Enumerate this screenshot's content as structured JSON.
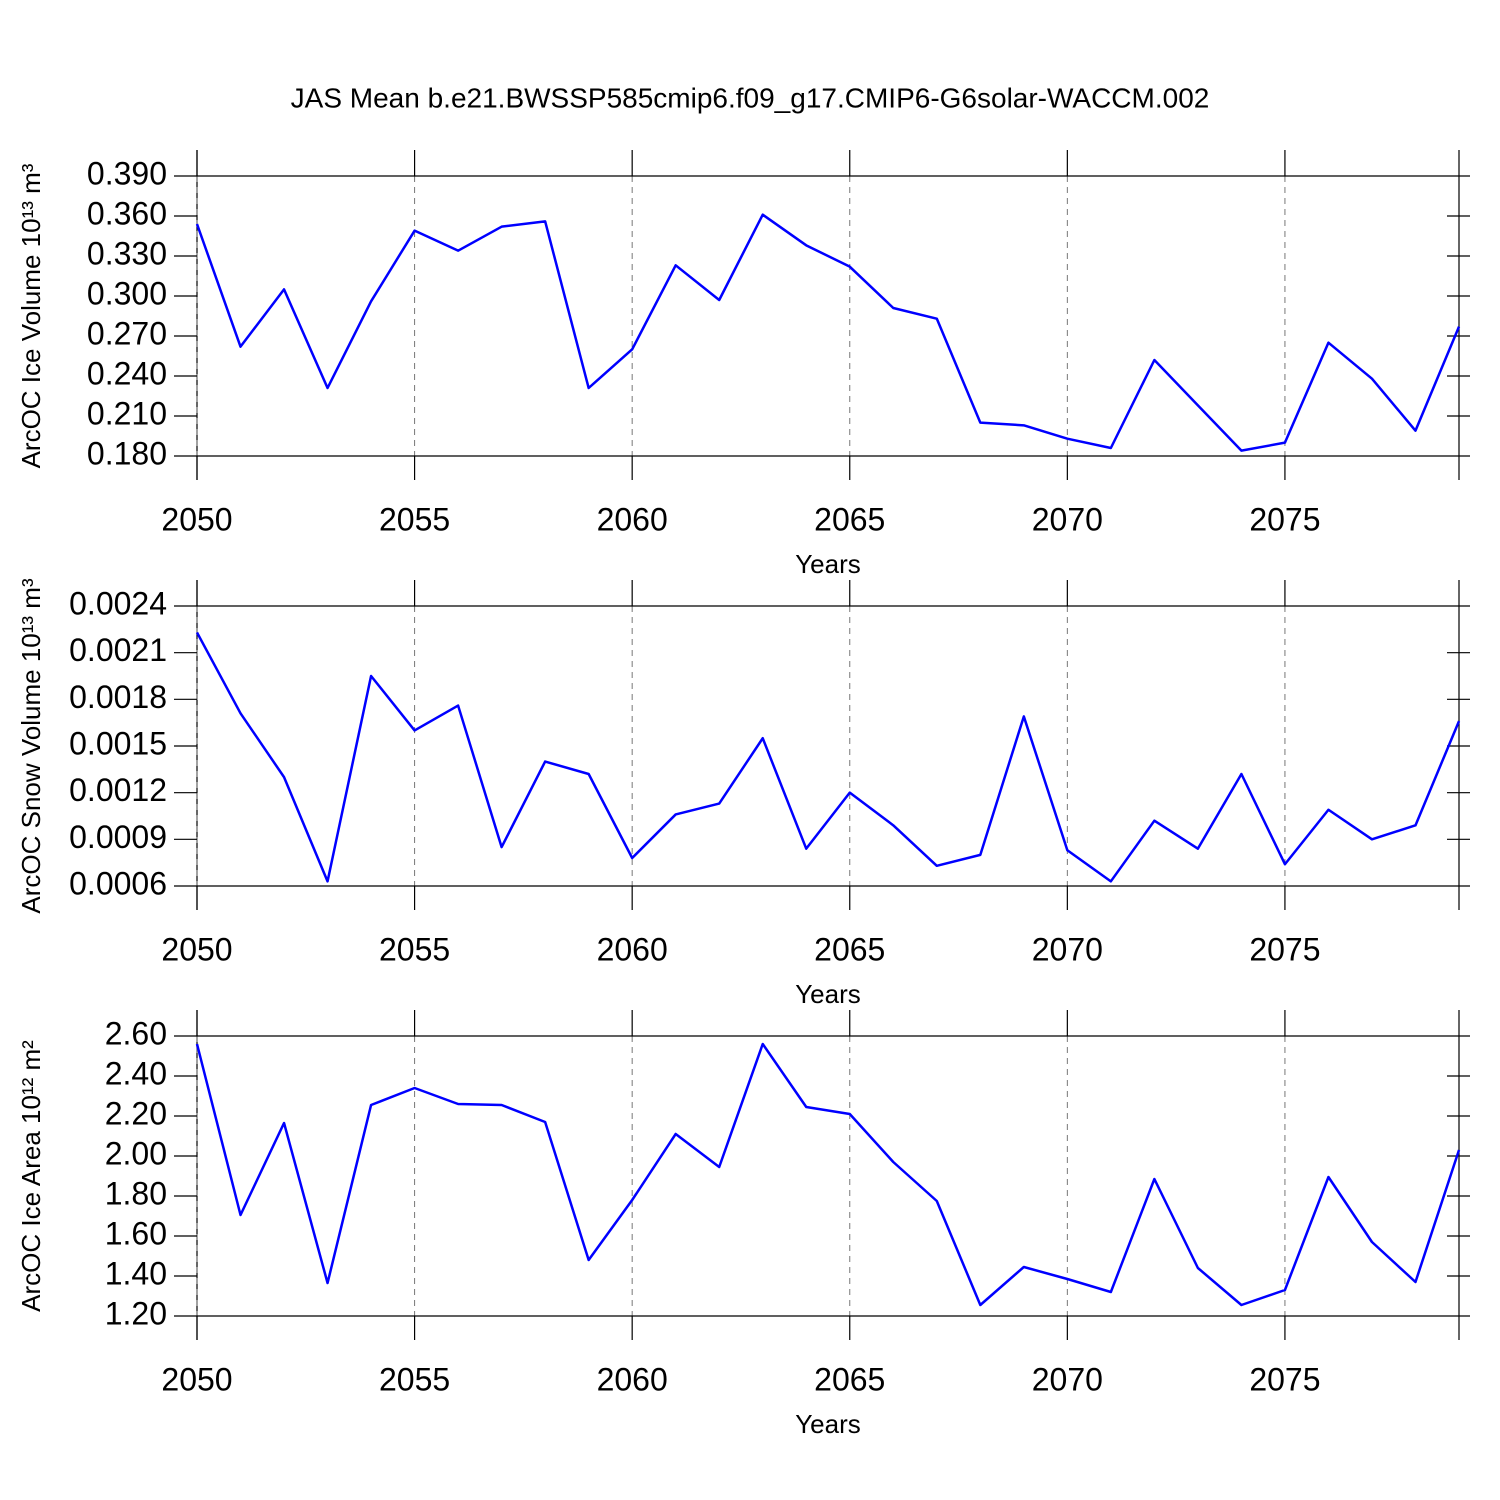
{
  "chart_data": [
    {
      "type": "line",
      "title": "JAS Mean b.e21.BWSSP585cmip6.f09_g17.CMIP6-G6solar-WACCM.002",
      "x_label": "Years",
      "y_label": "ArcOC Ice Volume 10¹³ m³",
      "grid": "x",
      "x": [
        2050,
        2051,
        2052,
        2053,
        2054,
        2055,
        2056,
        2057,
        2058,
        2059,
        2060,
        2061,
        2062,
        2063,
        2064,
        2065,
        2066,
        2067,
        2068,
        2069,
        2070,
        2071,
        2072,
        2073,
        2074,
        2075,
        2076,
        2077,
        2078,
        2079
      ],
      "series": [
        {
          "color": "#0000ff",
          "values": [
            0.354,
            0.262,
            0.305,
            0.231,
            0.296,
            0.349,
            0.334,
            0.352,
            0.356,
            0.231,
            0.26,
            0.323,
            0.297,
            0.361,
            0.338,
            0.322,
            0.291,
            0.283,
            0.205,
            0.203,
            0.193,
            0.186,
            0.252,
            0.218,
            0.184,
            0.19,
            0.265,
            0.238,
            0.199,
            0.277
          ]
        }
      ],
      "xlim": [
        2050,
        2079
      ],
      "xticks": [
        2050,
        2055,
        2060,
        2065,
        2070,
        2075
      ],
      "ylim": [
        0.18,
        0.39
      ],
      "yticks": [
        {
          "value": 0.18,
          "label": "0.180"
        },
        {
          "value": 0.21,
          "label": "0.210"
        },
        {
          "value": 0.24,
          "label": "0.240"
        },
        {
          "value": 0.27,
          "label": "0.270"
        },
        {
          "value": 0.3,
          "label": "0.300"
        },
        {
          "value": 0.33,
          "label": "0.330"
        },
        {
          "value": 0.36,
          "label": "0.360"
        },
        {
          "value": 0.39,
          "label": "0.390"
        }
      ]
    },
    {
      "type": "line",
      "x_label": "Years",
      "y_label": "ArcOC Snow Volume 10¹³ m³",
      "grid": "x",
      "x": [
        2050,
        2051,
        2052,
        2053,
        2054,
        2055,
        2056,
        2057,
        2058,
        2059,
        2060,
        2061,
        2062,
        2063,
        2064,
        2065,
        2066,
        2067,
        2068,
        2069,
        2070,
        2071,
        2072,
        2073,
        2074,
        2075,
        2076,
        2077,
        2078,
        2079
      ],
      "series": [
        {
          "color": "#0000ff",
          "values": [
            0.00223,
            0.00171,
            0.0013,
            0.00063,
            0.00195,
            0.0016,
            0.00176,
            0.00085,
            0.0014,
            0.00132,
            0.00078,
            0.00106,
            0.00113,
            0.00155,
            0.00084,
            0.0012,
            0.00099,
            0.00073,
            0.0008,
            0.00169,
            0.00083,
            0.00063,
            0.00102,
            0.00084,
            0.00132,
            0.00074,
            0.00109,
            0.0009,
            0.00099,
            0.00166
          ]
        }
      ],
      "xlim": [
        2050,
        2079
      ],
      "xticks": [
        2050,
        2055,
        2060,
        2065,
        2070,
        2075
      ],
      "ylim": [
        0.0006,
        0.0024
      ],
      "yticks": [
        0.0006,
        0.0009,
        0.0012,
        0.0015,
        0.0018,
        0.0021,
        0.0024
      ]
    },
    {
      "type": "line",
      "x_label": "Years",
      "y_label": "ArcOC Ice Area 10¹² m²",
      "grid": "x",
      "x": [
        2050,
        2051,
        2052,
        2053,
        2054,
        2055,
        2056,
        2057,
        2058,
        2059,
        2060,
        2061,
        2062,
        2063,
        2064,
        2065,
        2066,
        2067,
        2068,
        2069,
        2070,
        2071,
        2072,
        2073,
        2074,
        2075,
        2076,
        2077,
        2078,
        2079
      ],
      "series": [
        {
          "color": "#0000ff",
          "values": [
            2.56,
            1.705,
            2.165,
            1.365,
            2.255,
            2.34,
            2.26,
            2.255,
            2.17,
            1.48,
            1.78,
            2.11,
            1.945,
            2.56,
            2.245,
            2.21,
            1.97,
            1.775,
            1.255,
            1.445,
            1.385,
            1.32,
            1.885,
            1.44,
            1.255,
            1.33,
            1.895,
            1.57,
            1.37,
            2.03
          ]
        }
      ],
      "xlim": [
        2050,
        2079
      ],
      "xticks": [
        2050,
        2055,
        2060,
        2065,
        2070,
        2075
      ],
      "ylim": [
        1.2,
        2.6
      ],
      "yticks": [
        {
          "value": 1.2,
          "label": "1.20"
        },
        {
          "value": 1.4,
          "label": "1.40"
        },
        {
          "value": 1.6,
          "label": "1.60"
        },
        {
          "value": 1.8,
          "label": "1.80"
        },
        {
          "value": 2.0,
          "label": "2.00"
        },
        {
          "value": 2.2,
          "label": "2.20"
        },
        {
          "value": 2.4,
          "label": "2.40"
        },
        {
          "value": 2.6,
          "label": "2.60"
        }
      ]
    }
  ]
}
